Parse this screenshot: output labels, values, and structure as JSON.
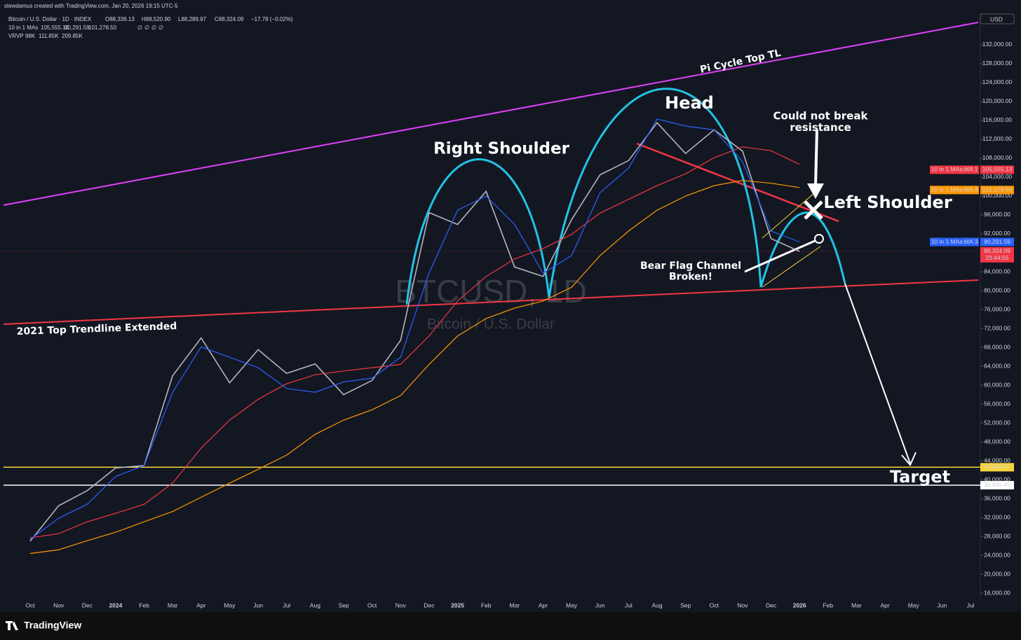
{
  "credit": "stewdamus created with TradingView.com, Jan 20, 2026 19:15 UTC-5",
  "footer": "TradingView",
  "chart_data": {
    "type": "line",
    "title": "Bitcoin / U.S. Dollar · 1D · INDEX",
    "ohlc": [
      "O88,336.13",
      "H88,520.90",
      "L88,289.97",
      "C88,324.09",
      "−17.78 (−0.02%)"
    ],
    "indicator": "10 in 1 MAs",
    "empty_marks": [
      "∅",
      "∅",
      "∅",
      "∅"
    ],
    "vrvp": [
      "VRVP",
      "98K",
      "111.85K",
      "209.85K"
    ],
    "watermark": "BTCUSD, 1D",
    "currency": "USD",
    "grid": false,
    "categories": [
      "Oct",
      "Nov",
      "Dec",
      "2024",
      "Feb",
      "Mar",
      "Apr",
      "May",
      "Jun",
      "Jul",
      "Aug",
      "Sep",
      "Oct",
      "Nov",
      "Dec",
      "2025",
      "Feb",
      "Mar",
      "Apr",
      "May",
      "Jun",
      "Jul",
      "Aug",
      "Sep",
      "Oct",
      "Nov",
      "Dec",
      "2026",
      "Feb",
      "Mar",
      "Apr",
      "May",
      "Jun",
      "Jul"
    ],
    "series": [
      {
        "name": "Bitcoin / U.S. Dollar",
        "color": "#b2b5be",
        "values": [
          27000,
          34500,
          37700,
          42500,
          43000,
          62000,
          70000,
          60500,
          67500,
          62500,
          64500,
          58000,
          61000,
          69500,
          96500,
          94000,
          101000,
          85000,
          83000,
          95000,
          104500,
          107500,
          115500,
          109000,
          114000,
          109500,
          91000,
          88300,
          null,
          null,
          null,
          null,
          null,
          null
        ],
        "last": {
          "value": 88324.09,
          "label": "88,324.09"
        },
        "countdown": "23:44:55",
        "tag_color": "#f23645"
      },
      {
        "name": "10 in 1 MAs:MA 1",
        "color": "#f23645",
        "values": [
          27700,
          28600,
          31100,
          32900,
          34800,
          39300,
          46700,
          52600,
          57000,
          60300,
          62200,
          63000,
          63700,
          64400,
          70400,
          77800,
          83000,
          86700,
          88900,
          91900,
          96400,
          99300,
          102200,
          104700,
          108100,
          110400,
          109600,
          106700,
          null,
          null,
          null,
          null,
          null,
          null
        ],
        "last": {
          "value": 105555.13,
          "label": "105,555.13"
        }
      },
      {
        "name": "10 in 1 MAs:MA 3",
        "color": "#2962ff",
        "values": [
          27400,
          31850,
          34800,
          40700,
          43000,
          58500,
          68100,
          65900,
          63700,
          59300,
          58500,
          60700,
          61500,
          65900,
          83700,
          97000,
          100000,
          94000,
          83700,
          87400,
          100700,
          105900,
          116300,
          114800,
          114000,
          107300,
          92600,
          90300,
          null,
          null,
          null,
          null,
          null,
          null
        ],
        "last": {
          "value": 90291.59,
          "label": "90,291.59"
        }
      },
      {
        "name": "10 in 1 MAs:MA 4",
        "color": "#ff9800",
        "values": [
          24400,
          25200,
          27100,
          28900,
          31100,
          33300,
          36300,
          39300,
          42200,
          45200,
          49600,
          52600,
          54800,
          57800,
          64400,
          70400,
          74100,
          76300,
          77800,
          80700,
          87400,
          92600,
          97000,
          100000,
          102200,
          103300,
          102700,
          101800,
          null,
          null,
          null,
          null,
          null,
          null
        ],
        "last": {
          "value": 101278.5,
          "label": "101,278.50"
        }
      }
    ],
    "levels": [
      {
        "value": 42643.7,
        "label": "42,643.70",
        "color": "#f5d33a"
      },
      {
        "value": 38845.45,
        "label": "38,845.45",
        "color": "#ffffff"
      }
    ],
    "annotations": [
      "Pi Cycle Top TL",
      "Head",
      "Right Shoulder",
      "Left Shoulder",
      [
        "Could not break",
        "resistance"
      ],
      [
        "Bear Flag Channel",
        "Broken!"
      ],
      "2021 Top Trendline Extended",
      "Target"
    ],
    "ylim": [
      14400,
      138500
    ],
    "yticks": [
      {
        "value": 16000,
        "label": "16,000.00"
      },
      {
        "value": 20000,
        "label": "20,000.00"
      },
      {
        "value": 24000,
        "label": "24,000.00"
      },
      {
        "value": 28000,
        "label": "28,000.00"
      },
      {
        "value": 32000,
        "label": "32,000.00"
      },
      {
        "value": 36000,
        "label": "36,000.00"
      },
      {
        "value": 40000,
        "label": "40,000.00"
      },
      {
        "value": 44000,
        "label": "44,000.00"
      },
      {
        "value": 48000,
        "label": "48,000.00"
      },
      {
        "value": 52000,
        "label": "52,000.00"
      },
      {
        "value": 56000,
        "label": "56,000.00"
      },
      {
        "value": 60000,
        "label": "60,000.00"
      },
      {
        "value": 64000,
        "label": "64,000.00"
      },
      {
        "value": 68000,
        "label": "68,000.00"
      },
      {
        "value": 72000,
        "label": "72,000.00"
      },
      {
        "value": 76000,
        "label": "76,000.00"
      },
      {
        "value": 80000,
        "label": "80,000.00"
      },
      {
        "value": 84000,
        "label": "84,000.00"
      },
      {
        "value": 88000,
        "label": "88,000.00"
      },
      {
        "value": 92000,
        "label": "92,000.00"
      },
      {
        "value": 96000,
        "label": "96,000.00"
      },
      {
        "value": 100000,
        "label": "100,000.00"
      },
      {
        "value": 104000,
        "label": "104,000.00"
      },
      {
        "value": 108000,
        "label": "108,000.00"
      },
      {
        "value": 112000,
        "label": "112,000.00"
      },
      {
        "value": 116000,
        "label": "116,000.00"
      },
      {
        "value": 120000,
        "label": "120,000.00"
      },
      {
        "value": 124000,
        "label": "124,000.00"
      },
      {
        "value": 128000,
        "label": "128,000.00"
      },
      {
        "value": 132000,
        "label": "132,000.00"
      }
    ]
  }
}
